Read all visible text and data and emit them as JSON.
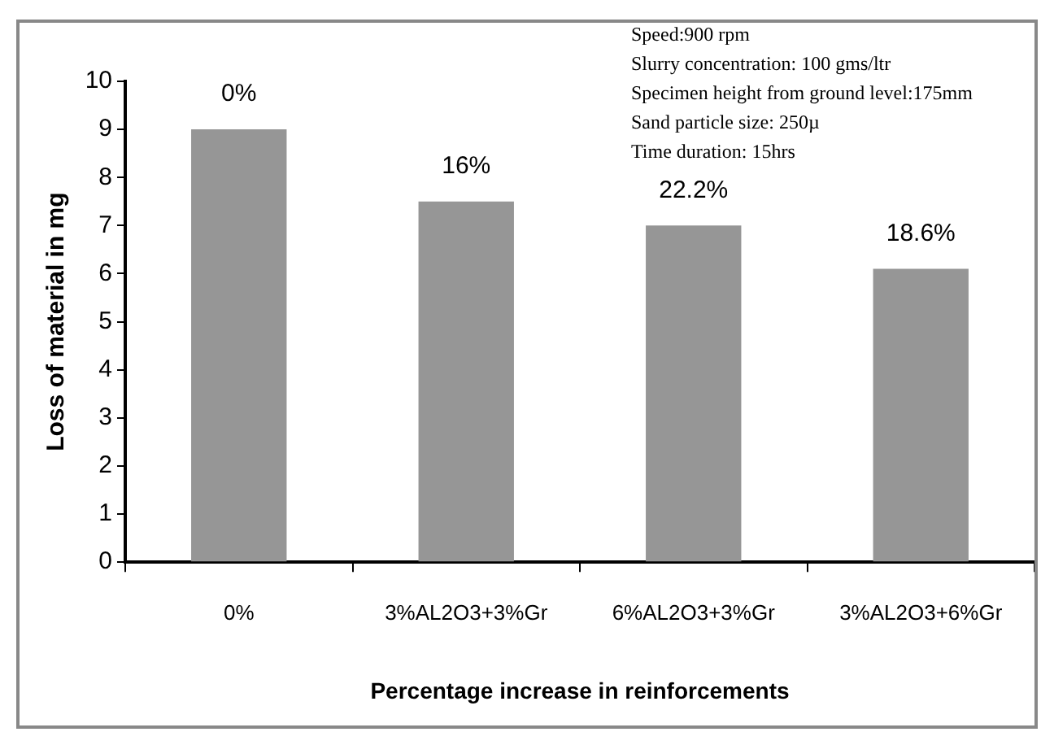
{
  "chart_data": {
    "type": "bar",
    "xlabel": "Percentage increase in reinforcements",
    "ylabel": "Loss of material in mg",
    "categories": [
      "0%",
      "3%AL2O3+3%Gr",
      "6%AL2O3+3%Gr",
      "3%AL2O3+6%Gr"
    ],
    "values": [
      9,
      7.5,
      7,
      6.1
    ],
    "color": "#969696",
    "ylim": [
      0,
      10
    ],
    "yticks": [
      0,
      1,
      2,
      3,
      4,
      5,
      6,
      7,
      8,
      9,
      10
    ],
    "grid": false,
    "legend": false,
    "annotations": [
      "Speed:900 rpm",
      "Slurry concentration: 100 gms/ltr",
      "Specimen height from ground level:175mm",
      "Sand particle size: 250µ",
      "Time duration: 15hrs",
      {
        "text": "0%",
        "x": "0%",
        "y": 9
      },
      {
        "text": "16%",
        "x": "3%AL2O3+3%Gr",
        "y": 7.5
      },
      {
        "text": "22.2%",
        "x": "6%AL2O3+3%Gr",
        "y": 7
      },
      {
        "text": "18.6%",
        "x": "3%AL2O3+6%Gr",
        "y": 6.1
      }
    ]
  }
}
